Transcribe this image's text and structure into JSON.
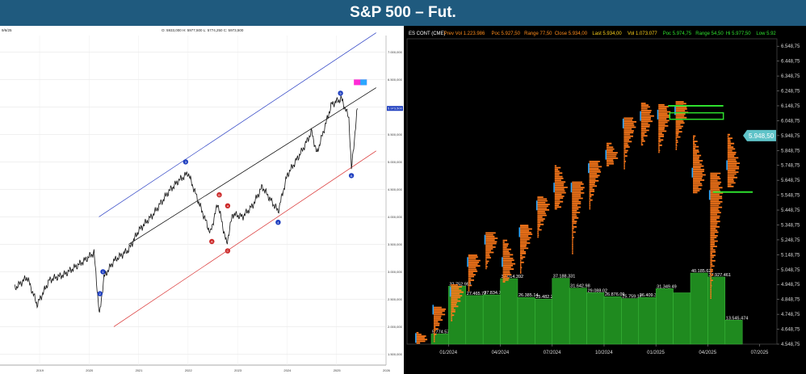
{
  "banner": {
    "title": "S&P 500 – Fut."
  },
  "chart_data": [
    {
      "type": "line",
      "panel": "left",
      "header": {
        "date": "9/6/25",
        "ohlc": "O: 5933,000   H: 5977,500   L: 5774,250   C: 5973,500"
      },
      "x_tick_labels": [
        "2019",
        "2020",
        "2021",
        "2022",
        "2023",
        "2024",
        "2025",
        "2026"
      ],
      "y_tick_labels": [
        "7.000,000",
        "6.500,000",
        "6.000,000",
        "5.500,000",
        "5.000,000",
        "4.500,000",
        "4.000,000",
        "3.500,000",
        "3.000,000",
        "2.500,000",
        "2.000,000",
        "1.500,000"
      ],
      "last_price_label": "5.973,500",
      "ylim": [
        1300,
        7300
      ],
      "series": [
        {
          "values_x": [
            2018.5,
            2018.75,
            2018.95,
            2019.2,
            2019.5,
            2019.9,
            2020.1,
            2020.21,
            2020.3,
            2020.5,
            2020.8,
            2021.0,
            2021.3,
            2021.6,
            2021.8,
            2022.0,
            2022.2,
            2022.45,
            2022.6,
            2022.78,
            2022.9,
            2023.1,
            2023.3,
            2023.5,
            2023.6,
            2023.82,
            2024.0,
            2024.3,
            2024.5,
            2024.6,
            2024.9,
            2025.1,
            2025.25,
            2025.3,
            2025.42
          ],
          "values_y": [
            2700,
            2900,
            2400,
            2850,
            2950,
            3200,
            3350,
            2200,
            2900,
            3200,
            3400,
            3750,
            4050,
            4450,
            4650,
            4800,
            4300,
            3700,
            4250,
            3500,
            4050,
            4000,
            4200,
            4550,
            4400,
            4100,
            4750,
            5200,
            5550,
            5150,
            6050,
            6150,
            5800,
            4850,
            5973
          ]
        }
      ],
      "channel_lines": {
        "upper_color": "#2a3fc4",
        "middle_color": "#000000",
        "lower_color": "#d93030"
      },
      "wave_labels": [
        {
          "text": "3",
          "x": 2021.95,
          "y": 5000,
          "color": "#1f3fbf"
        },
        {
          "text": "4",
          "x": 2022.8,
          "y": 4200,
          "color": "#cc2a2a"
        },
        {
          "text": "A",
          "x": 2022.48,
          "y": 3550,
          "color": "#cc2a2a"
        },
        {
          "text": "C",
          "x": 2022.8,
          "y": 3380,
          "color": "#cc2a2a"
        },
        {
          "text": "1",
          "x": 2020.28,
          "y": 3000,
          "color": "#1f3fbf"
        },
        {
          "text": "2",
          "x": 2020.22,
          "y": 2600,
          "color": "#1f3fbf"
        },
        {
          "text": "5",
          "x": 2025.08,
          "y": 6250,
          "color": "#1f3fbf"
        },
        {
          "text": "B",
          "x": 2022.63,
          "y": 4400,
          "color": "#cc2a2a"
        },
        {
          "text": "4",
          "x": 2023.82,
          "y": 3900,
          "color": "#1f3fbf"
        },
        {
          "text": "A",
          "x": 2025.3,
          "y": 4750,
          "color": "#1f3fbf"
        }
      ]
    },
    {
      "type": "bar",
      "panel": "right",
      "header": [
        {
          "label": "ES CONT (CME)",
          "value": "",
          "color": "#ffffff"
        },
        {
          "label": "Prev Vol",
          "value": "1.223.986",
          "color": "#ff8c1a"
        },
        {
          "label": "Poc",
          "value": "5.927,50",
          "color": "#ff8c1a"
        },
        {
          "label": "Range",
          "value": "77,50",
          "color": "#ff8c1a"
        },
        {
          "label": "Close",
          "value": "5.934,00",
          "color": "#ff8c1a"
        },
        {
          "label": "Last",
          "value": "5.934,00",
          "color": "#ffd21a"
        },
        {
          "label": "Vol",
          "value": "1.073.077",
          "color": "#ffd21a"
        },
        {
          "label": "Poc",
          "value": "5.974,75",
          "color": "#2ee02e"
        },
        {
          "label": "Range",
          "value": "54,50",
          "color": "#2ee02e"
        },
        {
          "label": "Hi",
          "value": "5.977,50",
          "color": "#2ee02e"
        },
        {
          "label": "Low",
          "value": "5.92",
          "color": "#2ee02e"
        }
      ],
      "y_tick_labels": [
        "6.548,75",
        "6.448,75",
        "6.348,75",
        "6.248,75",
        "6.148,75",
        "6.048,75",
        "5.948,75",
        "5.848,75",
        "5.748,75",
        "5.648,75",
        "5.548,75",
        "5.448,75",
        "5.348,75",
        "5.248,75",
        "5.148,75",
        "5.048,75",
        "4.948,75",
        "4.848,75",
        "4.748,75",
        "4.648,75",
        "4.548,75"
      ],
      "x_tick_labels": [
        "01/2024",
        "04/2024",
        "07/2024",
        "10/2024",
        "01/2025",
        "04/2025",
        "07/2025"
      ],
      "last_price_label": "5.948,50",
      "ylim": [
        4548.75,
        6598.75
      ],
      "monthly_profiles": [
        {
          "month": "2023-11",
          "low": 4550,
          "high": 4630,
          "poc": 4590
        },
        {
          "month": "2023-12",
          "low": 4560,
          "high": 4800,
          "poc": 4780
        },
        {
          "month": "2024-01",
          "low": 4700,
          "high": 4950,
          "poc": 4900
        },
        {
          "month": "2024-02",
          "low": 4900,
          "high": 5150,
          "poc": 5100
        },
        {
          "month": "2024-03",
          "low": 5050,
          "high": 5300,
          "poc": 5250
        },
        {
          "month": "2024-04",
          "low": 4960,
          "high": 5250,
          "poc": 5100
        },
        {
          "month": "2024-05",
          "low": 5020,
          "high": 5350,
          "poc": 5300
        },
        {
          "month": "2024-06",
          "low": 5260,
          "high": 5540,
          "poc": 5480
        },
        {
          "month": "2024-07",
          "low": 5450,
          "high": 5750,
          "poc": 5600
        },
        {
          "month": "2024-08",
          "low": 5150,
          "high": 5640,
          "poc": 5600
        },
        {
          "month": "2024-09",
          "low": 5450,
          "high": 5780,
          "poc": 5730
        },
        {
          "month": "2024-10",
          "low": 5740,
          "high": 5900,
          "poc": 5820
        },
        {
          "month": "2024-11",
          "low": 5720,
          "high": 6070,
          "poc": 6030
        },
        {
          "month": "2024-12",
          "low": 5880,
          "high": 6170,
          "poc": 6080
        },
        {
          "month": "2025-01",
          "low": 5830,
          "high": 6160,
          "poc": 6090
        },
        {
          "month": "2025-02",
          "low": 5850,
          "high": 6180,
          "poc": 6120
        },
        {
          "month": "2025-03",
          "low": 5560,
          "high": 5950,
          "poc": 5700
        },
        {
          "month": "2025-04",
          "low": 4850,
          "high": 5700,
          "poc": 5550
        },
        {
          "month": "2025-05",
          "low": 5600,
          "high": 5960,
          "poc": 5750
        }
      ],
      "levels": [
        {
          "name": "resistance-high",
          "value": 6148.75,
          "color": "#2ee02e"
        },
        {
          "name": "resistance-box",
          "value": 6080,
          "color": "#2ee02e"
        },
        {
          "name": "support",
          "value": 5570,
          "color": "#2ee02e"
        }
      ],
      "monthly_volume": [
        {
          "month": "2023-12",
          "value": "5.774.57",
          "height": 5774570
        },
        {
          "month": "2024-01",
          "value": "32.752.951",
          "height": 32752951
        },
        {
          "month": "2024-02",
          "value": "27.465.72",
          "height": 27465720
        },
        {
          "month": "2024-03",
          "value": "27.834.71",
          "height": 27834710
        },
        {
          "month": "2024-04",
          "value": "37.014.392",
          "height": 37014392
        },
        {
          "month": "2024-05",
          "value": "26.385.14",
          "height": 26385140
        },
        {
          "month": "2024-06",
          "value": "25.482.27",
          "height": 25482270
        },
        {
          "month": "2024-07",
          "value": "37.188.331",
          "height": 37188331
        },
        {
          "month": "2024-08",
          "value": "31.642.98",
          "height": 31642980
        },
        {
          "month": "2024-09",
          "value": "29.088.02",
          "height": 29088020
        },
        {
          "month": "2024-10",
          "value": "26.876.09",
          "height": 26876090
        },
        {
          "month": "2024-11",
          "value": "25.759.12",
          "height": 25759120
        },
        {
          "month": "2024-12",
          "value": "26.409.38",
          "height": 26409380
        },
        {
          "month": "2025-01",
          "value": "31.349.49",
          "height": 31349490
        },
        {
          "month": "2025-02",
          "value": "",
          "height": 29000000
        },
        {
          "month": "2025-03",
          "value": "40.185.62",
          "height": 40185620
        },
        {
          "month": "2025-04",
          "value": "37.927.461",
          "height": 37927461
        },
        {
          "month": "2025-05",
          "value": "13.545.474",
          "height": 13545474
        }
      ]
    }
  ]
}
